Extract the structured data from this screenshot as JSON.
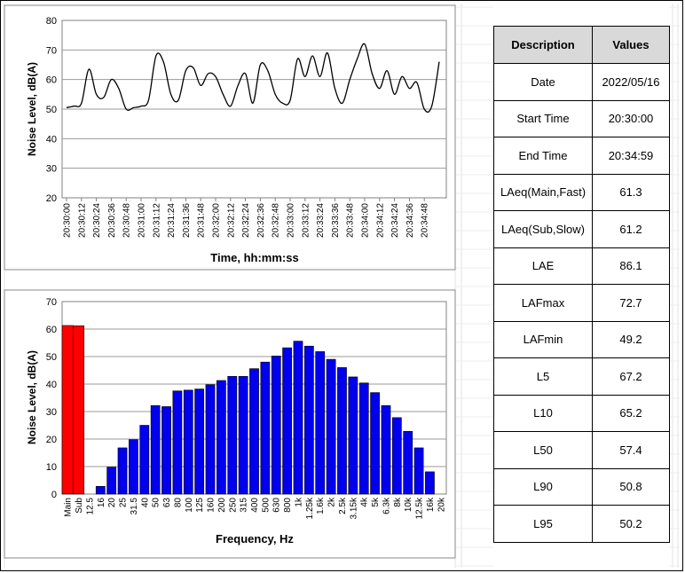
{
  "time_chart": {
    "ylabel": "Noise Level, dB(A)",
    "xlabel": "Time, hh:mm:ss",
    "ylim": [
      20,
      80
    ],
    "yticks": [
      20,
      30,
      40,
      50,
      60,
      70,
      80
    ],
    "tick_labels": [
      "20:30:00",
      "20:30:12",
      "20:30:24",
      "20:30:36",
      "20:30:48",
      "20:31:00",
      "20:31:12",
      "20:31:24",
      "20:31:36",
      "20:31:48",
      "20:32:00",
      "20:32:12",
      "20:32:24",
      "20:32:36",
      "20:32:48",
      "20:33:00",
      "20:33:12",
      "20:33:24",
      "20:33:36",
      "20:33:48",
      "20:34:00",
      "20:34:12",
      "20:34:24",
      "20:34:36",
      "20:34:48"
    ],
    "line_color": "#000000"
  },
  "freq_chart": {
    "ylabel": "Noise Level, dB(A)",
    "xlabel": "Frequency, Hz",
    "ylim": [
      0,
      70
    ],
    "yticks": [
      0,
      10,
      20,
      30,
      40,
      50,
      60,
      70
    ],
    "bar_color_overall": "#ff0000",
    "bar_color_band": "#0000ee"
  },
  "table": {
    "headers": [
      "Description",
      "Values"
    ],
    "rows": [
      [
        "Date",
        "2022/05/16"
      ],
      [
        "Start Time",
        "20:30:00"
      ],
      [
        "End Time",
        "20:34:59"
      ],
      [
        "LAeq(Main,Fast)",
        "61.3"
      ],
      [
        "LAeq(Sub,Slow)",
        "61.2"
      ],
      [
        "LAE",
        "86.1"
      ],
      [
        "LAFmax",
        "72.7"
      ],
      [
        "LAFmin",
        "49.2"
      ],
      [
        "L5",
        "67.2"
      ],
      [
        "L10",
        "65.2"
      ],
      [
        "L50",
        "57.4"
      ],
      [
        "L90",
        "50.8"
      ],
      [
        "L95",
        "50.2"
      ]
    ]
  },
  "chart_data": [
    {
      "type": "line",
      "title": "",
      "xlabel": "Time, hh:mm:ss",
      "ylabel": "Noise Level, dB(A)",
      "ylim": [
        20,
        80
      ],
      "grid": true,
      "x": [
        "20:30:00",
        "20:30:06",
        "20:30:12",
        "20:30:18",
        "20:30:24",
        "20:30:30",
        "20:30:36",
        "20:30:42",
        "20:30:48",
        "20:30:54",
        "20:31:00",
        "20:31:06",
        "20:31:12",
        "20:31:18",
        "20:31:24",
        "20:31:30",
        "20:31:36",
        "20:31:42",
        "20:31:48",
        "20:31:54",
        "20:32:00",
        "20:32:06",
        "20:32:12",
        "20:32:18",
        "20:32:24",
        "20:32:30",
        "20:32:36",
        "20:32:42",
        "20:32:48",
        "20:32:54",
        "20:33:00",
        "20:33:06",
        "20:33:12",
        "20:33:18",
        "20:33:24",
        "20:33:30",
        "20:33:36",
        "20:33:42",
        "20:33:48",
        "20:33:54",
        "20:34:00",
        "20:34:06",
        "20:34:12",
        "20:34:18",
        "20:34:24",
        "20:34:30",
        "20:34:36",
        "20:34:42",
        "20:34:48",
        "20:34:54",
        "20:34:59"
      ],
      "series": [
        {
          "values": [
            50.5,
            51,
            52,
            63.5,
            55,
            54,
            60,
            57,
            50,
            50.5,
            51,
            53,
            68,
            66,
            55,
            53,
            63,
            64,
            58,
            62,
            61,
            55,
            51,
            58,
            62,
            52,
            65,
            63,
            55,
            52,
            53,
            67,
            61,
            68,
            61,
            69,
            57,
            52,
            60,
            67,
            72,
            62,
            57,
            63,
            55,
            61,
            57,
            59,
            50,
            51,
            66
          ]
        }
      ]
    },
    {
      "type": "bar",
      "title": "",
      "xlabel": "Frequency, Hz",
      "ylabel": "Noise Level, dB(A)",
      "ylim": [
        0,
        70
      ],
      "grid": true,
      "categories": [
        "Main",
        "Sub",
        "12.5",
        "16",
        "20",
        "25",
        "31.5",
        "40",
        "50",
        "63",
        "80",
        "100",
        "125",
        "160",
        "200",
        "250",
        "315",
        "400",
        "500",
        "630",
        "800",
        "1k",
        "1.25k",
        "1.6k",
        "2k",
        "2.5k",
        "3.15k",
        "4k",
        "5k",
        "6.3k",
        "8k",
        "10k",
        "12.5k",
        "16k",
        "20k"
      ],
      "values": [
        61.3,
        61.2,
        0,
        2.8,
        9.8,
        16.8,
        19.8,
        25,
        32.2,
        31.8,
        37.5,
        37.8,
        38.2,
        39.8,
        41.3,
        42.8,
        42.8,
        45.6,
        48,
        50.2,
        53.2,
        55.6,
        53.8,
        51.8,
        49,
        46,
        42.6,
        40.4,
        36.9,
        32.2,
        27.8,
        22.8,
        16.8,
        8.1,
        0
      ]
    }
  ]
}
